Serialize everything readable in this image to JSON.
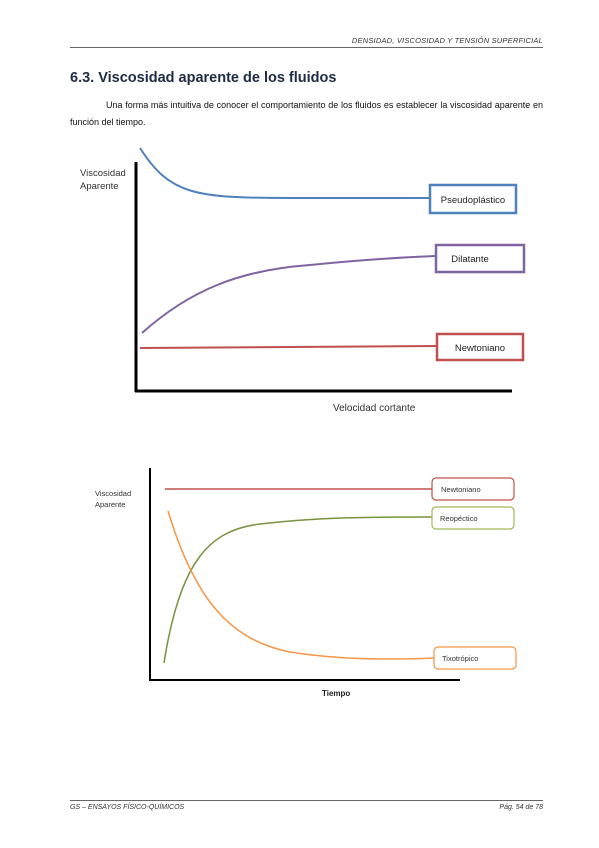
{
  "header": {
    "title": "DENSIDAD, VISCOSIDAD Y TENSIÓN SUPERFICIAL"
  },
  "section": {
    "title": "6.3. Viscosidad aparente de los fluidos"
  },
  "intro": {
    "text": "Una forma más intuitiva de conocer el comportamiento de los fluidos es establecer la viscosidad aparente en función del tiempo."
  },
  "chart_data": [
    {
      "type": "line",
      "ylabel": "Viscosidad Aparente",
      "xlabel": "Velocidad cortante",
      "series": [
        {
          "name": "Pseudoplástico",
          "color": "#4f81bd"
        },
        {
          "name": "Dilatante",
          "color": "#8064a2"
        },
        {
          "name": "Newtoniano",
          "color": "#c0504d"
        }
      ]
    },
    {
      "type": "line",
      "ylabel": "Viscosidad Aparente",
      "xlabel": "Tiempo",
      "series": [
        {
          "name": "Newtoniano",
          "color": "#c0504d"
        },
        {
          "name": "Reopéctico",
          "color": "#77933c"
        },
        {
          "name": "Tixotrópico",
          "color": "#f79646"
        }
      ]
    }
  ],
  "footer": {
    "left": "GS – ENSAYOS FÍSICO-QUÍMICOS",
    "right": "Pág. 54 de 78"
  }
}
